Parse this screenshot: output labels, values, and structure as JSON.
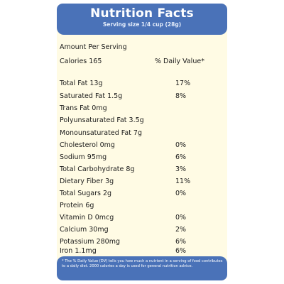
{
  "header": {
    "title": "Nutrition Facts",
    "serving_size": "Serving size 1/4 cup (28g)"
  },
  "amount_per_serving": "Amount Per Serving",
  "calories": "Calories 165",
  "daily_value_header": "% Daily Value*",
  "nutrients": [
    {
      "label": "Total Fat 13g",
      "dv": "17%"
    },
    {
      "label": "Saturated Fat 1.5g",
      "dv": "8%"
    },
    {
      "label": "Trans Fat 0mg",
      "dv": ""
    },
    {
      "label": "Polyunsaturated Fat 3.5g",
      "dv": ""
    },
    {
      "label": "Monounsaturated Fat 7g",
      "dv": ""
    },
    {
      "label": "Cholesterol 0mg",
      "dv": "0%"
    },
    {
      "label": "Sodium 95mg",
      "dv": "6%"
    },
    {
      "label": "Total Carbohydrate 8g",
      "dv": "3%"
    },
    {
      "label": "Dietary Fiber 3g",
      "dv": "11%"
    },
    {
      "label": "Total Sugars 2g",
      "dv": "0%"
    },
    {
      "label": "Protein 6g",
      "dv": ""
    },
    {
      "label": "Vitamin D 0mcg",
      "dv": "0%"
    },
    {
      "label": "Calcium 30mg",
      "dv": "2%"
    },
    {
      "label": "Potassium 280mg",
      "dv": "6%"
    },
    {
      "label": "Iron 1.1mg",
      "dv": "6%"
    }
  ],
  "footnote": "* The % Daily Value (DV) tells you how much a nutrient in a serving of food contributes to a daily diet. 2000 calories a day is used for general nutrition advice.",
  "colors": {
    "band": "#4a72b8",
    "panel": "#fffbe4",
    "text": "#1a1a1a"
  }
}
